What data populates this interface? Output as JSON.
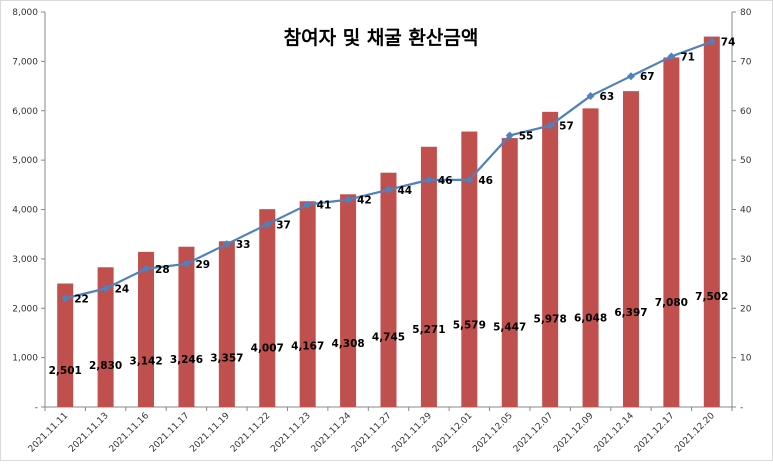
{
  "chart_data": {
    "type": "bar",
    "title": "참여자 및 채굴 환산금액",
    "categories": [
      "2021.11.11",
      "2021.11.13",
      "2021.11.16",
      "2021.11.17",
      "2021.11.19",
      "2021.11.22",
      "2021.11.23",
      "2021.11.24",
      "2021.11.27",
      "2021.11.29",
      "2021.12.01",
      "2021.12.05",
      "2021.12.07",
      "2021.12.09",
      "2021.12.14",
      "2021.12.17",
      "2021.12.20"
    ],
    "series": [
      {
        "name": "채굴 환산금액",
        "type": "bar",
        "axis": "left",
        "color": "#c0504d",
        "values": [
          2501,
          2830,
          3142,
          3246,
          3357,
          4007,
          4167,
          4308,
          4745,
          5271,
          5579,
          5447,
          5978,
          6048,
          6397,
          7080,
          7502
        ],
        "labels": [
          "2,501",
          "2,830",
          "3,142",
          "3,246",
          "3,357",
          "4,007",
          "4,167",
          "4,308",
          "4,745",
          "5,271",
          "5,579",
          "5,447",
          "5,978",
          "6,048",
          "6,397",
          "7,080",
          "7,502"
        ]
      },
      {
        "name": "참여자",
        "type": "line",
        "axis": "right",
        "color": "#4f81bd",
        "values": [
          22,
          24,
          28,
          29,
          33,
          37,
          41,
          42,
          44,
          46,
          46,
          55,
          57,
          63,
          67,
          71,
          74
        ],
        "labels": [
          "22",
          "24",
          "28",
          "29",
          "33",
          "37",
          "41",
          "42",
          "44",
          "46",
          "46",
          "55",
          "57",
          "63",
          "67",
          "71",
          "74"
        ]
      }
    ],
    "y_left": {
      "ylim": [
        0,
        8000
      ],
      "ticks": [
        0,
        1000,
        2000,
        3000,
        4000,
        5000,
        6000,
        7000,
        8000
      ],
      "tick_labels": [
        "-",
        "1,000",
        "2,000",
        "3,000",
        "4,000",
        "5,000",
        "6,000",
        "7,000",
        "8,000"
      ]
    },
    "y_right": {
      "ylim": [
        0,
        80
      ],
      "ticks": [
        0,
        10,
        20,
        30,
        40,
        50,
        60,
        70,
        80
      ],
      "tick_labels": [
        "-",
        "10",
        "20",
        "30",
        "40",
        "50",
        "60",
        "70",
        "80"
      ]
    },
    "grid": false,
    "legend": "none"
  }
}
